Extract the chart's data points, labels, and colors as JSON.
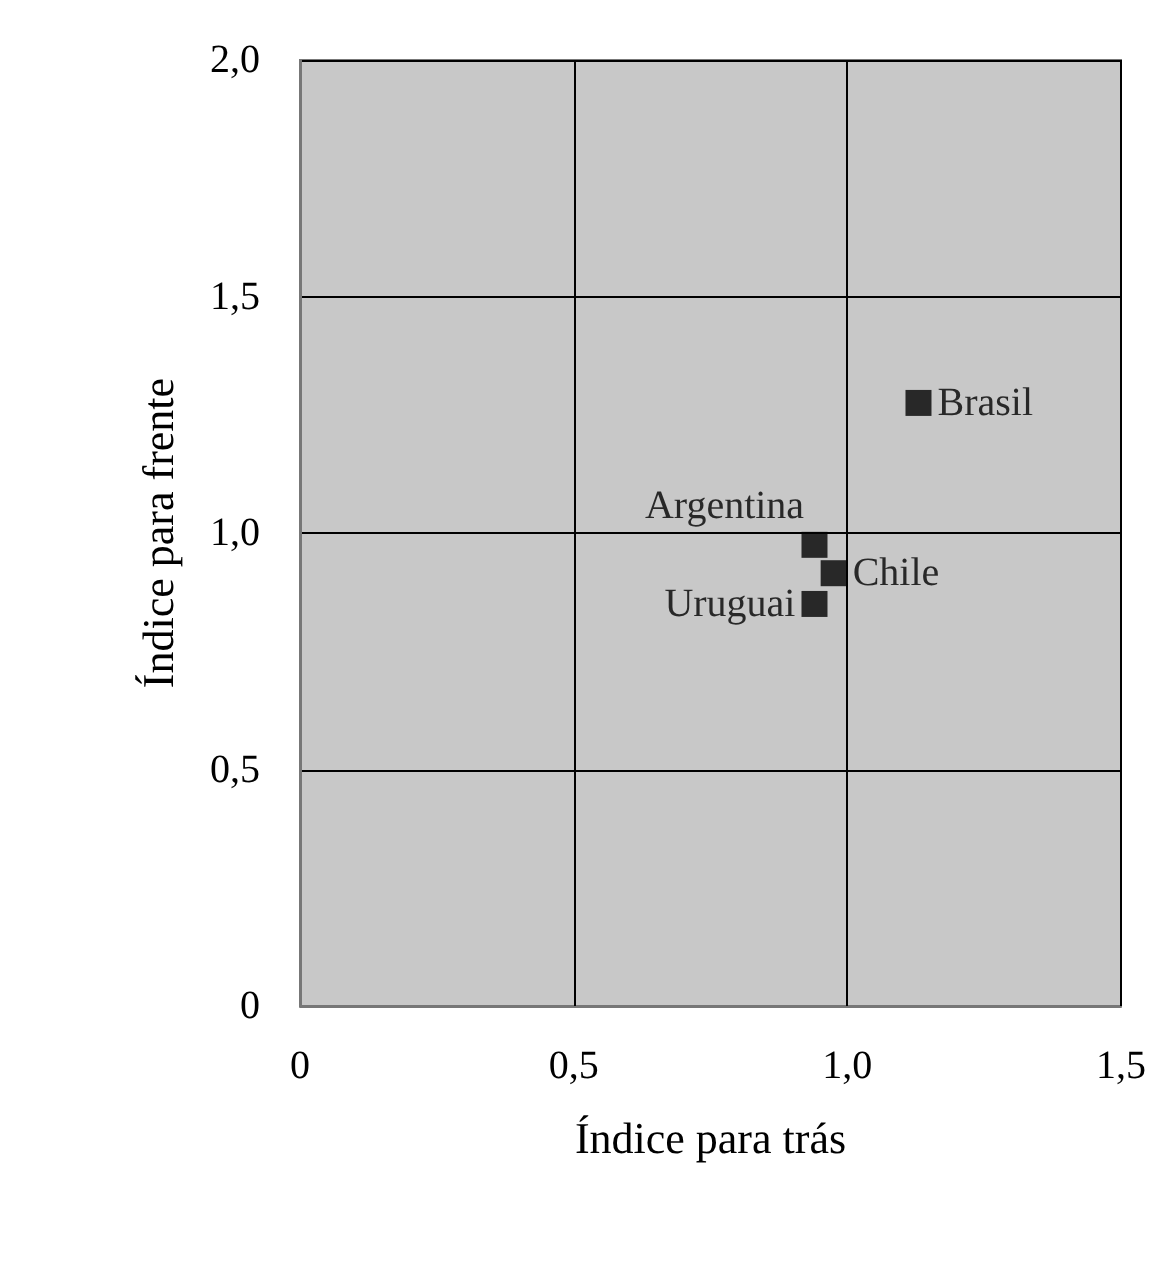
{
  "chart_data": {
    "type": "scatter",
    "xlabel": "Índice para trás",
    "ylabel": "Índice para frente",
    "xlim": [
      0,
      1.5
    ],
    "xticks": [
      {
        "value": 0,
        "label": "0"
      },
      {
        "value": 0.5,
        "label": "0,5"
      },
      {
        "value": 1,
        "label": "1,0"
      },
      {
        "value": 1.5,
        "label": "1,5"
      }
    ],
    "ylim": [
      0,
      2
    ],
    "yticks": [
      {
        "value": 0,
        "label": "0"
      },
      {
        "value": 0.5,
        "label": "0,5"
      },
      {
        "value": 1,
        "label": "1,0"
      },
      {
        "value": 1.5,
        "label": "1,5"
      },
      {
        "value": 2,
        "label": "2,0"
      }
    ],
    "grid": true,
    "marker": "square",
    "series": [
      {
        "name": "Brasil",
        "color": "#000000",
        "x": [
          1.13
        ],
        "values": [
          1.275
        ]
      },
      {
        "name": "Argentina",
        "color": "#000000",
        "x": [
          0.94
        ],
        "values": [
          0.975
        ]
      },
      {
        "name": "Chile",
        "color": "#000000",
        "x": [
          0.975
        ],
        "values": [
          0.915
        ]
      },
      {
        "name": "Uruguai",
        "color": "#000000",
        "x": [
          0.94
        ],
        "values": [
          0.85
        ]
      }
    ]
  }
}
